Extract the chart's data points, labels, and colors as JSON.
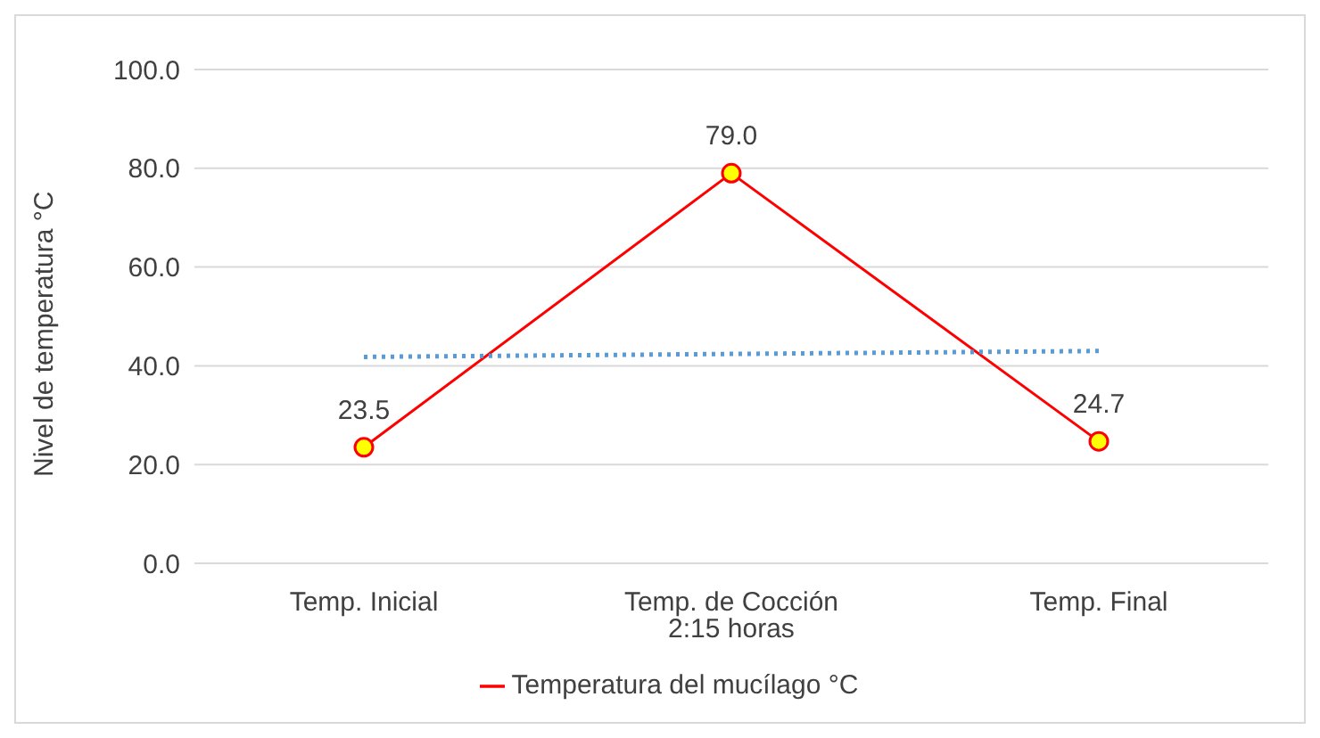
{
  "chart_data": {
    "type": "line",
    "ylabel": "Nivel de temperatura °C",
    "categories": [
      "Temp. Inicial",
      "Temp. de Cocción 2:15 horas",
      "Temp. Final"
    ],
    "series": [
      {
        "name": "Temperatura del mucílago °C",
        "color": "#ff0000",
        "values": [
          23.5,
          79.0,
          24.7
        ],
        "value_labels": [
          "23.5",
          "79.0",
          "24.7"
        ],
        "marker": "circle",
        "line_style": "solid"
      },
      {
        "type": "line",
        "color": "#5b9bd5",
        "values": [
          41.8,
          42.4,
          43.0
        ],
        "marker": "none",
        "line_style": "dotted"
      }
    ],
    "ylim": [
      0,
      100
    ],
    "yticks": [
      {
        "value": 0,
        "label": "0.0"
      },
      {
        "value": 20,
        "label": "20.0"
      },
      {
        "value": 40,
        "label": "40.0"
      },
      {
        "value": 60,
        "label": "60.0"
      },
      {
        "value": 80,
        "label": "80.0"
      },
      {
        "value": 100,
        "label": "100.0"
      }
    ],
    "grid": "y",
    "legend": "bottom"
  }
}
